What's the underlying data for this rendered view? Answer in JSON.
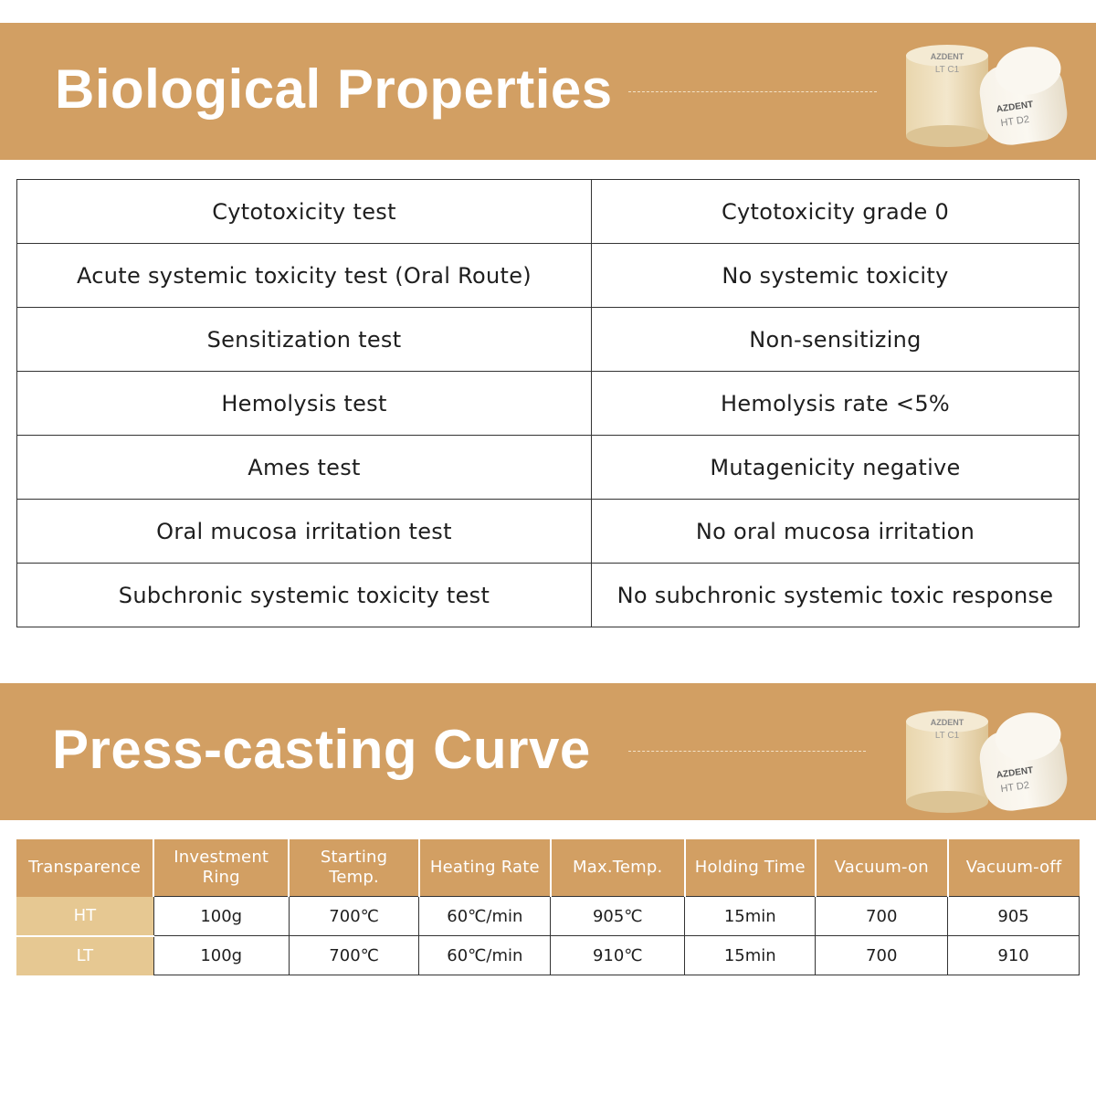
{
  "section1": {
    "title": "Biological Properties",
    "rows": [
      {
        "test": "Cytotoxicity test",
        "result": "Cytotoxicity grade 0"
      },
      {
        "test": "Acute systemic toxicity test (Oral Route)",
        "result": "No systemic toxicity"
      },
      {
        "test": "Sensitization test",
        "result": "Non-sensitizing"
      },
      {
        "test": "Hemolysis test",
        "result": "Hemolysis rate <5%"
      },
      {
        "test": "Ames test",
        "result": "Mutagenicity negative"
      },
      {
        "test": "Oral mucosa irritation test",
        "result": "No oral mucosa irritation"
      },
      {
        "test": "Subchronic systemic toxicity test",
        "result": "No subchronic systemic toxic response"
      }
    ]
  },
  "section2": {
    "title": "Press-casting Curve",
    "headers": [
      "Transparence",
      "Investment Ring",
      "Starting Temp.",
      "Heating Rate",
      "Max.Temp.",
      "Holding Time",
      "Vacuum-on",
      "Vacuum-off"
    ],
    "rows": [
      [
        "HT",
        "100g",
        "700℃",
        "60℃/min",
        "905℃",
        "15min",
        "700",
        "905"
      ],
      [
        "LT",
        "100g",
        "700℃",
        "60℃/min",
        "910℃",
        "15min",
        "700",
        "910"
      ]
    ]
  },
  "product": {
    "brand": "AZDENT",
    "block_back_label": "LT C1",
    "block_front_label": "HT D2"
  },
  "colors": {
    "banner": "#d29f63",
    "row_header": "#e6c892",
    "block_face": "#f4ecd9",
    "block_side": "#ecdcb8"
  }
}
